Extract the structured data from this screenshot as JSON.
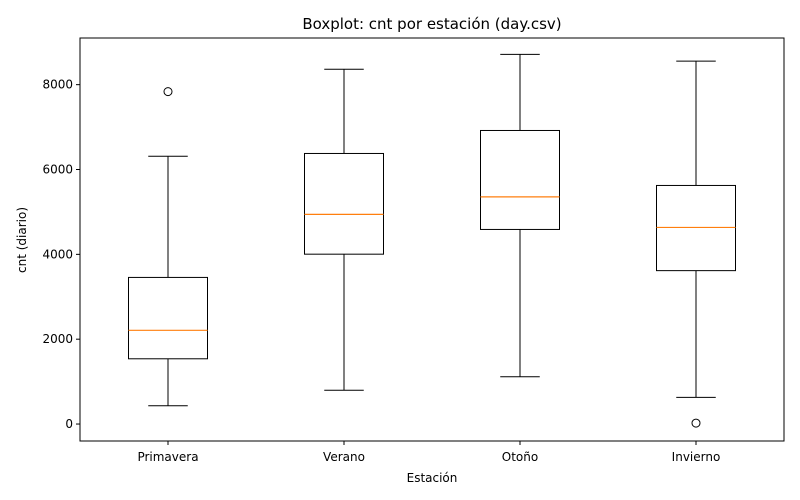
{
  "chart_data": {
    "type": "boxplot",
    "title": "Boxplot: cnt por estación (day.csv)",
    "xlabel": "Estación",
    "ylabel": "cnt (diario)",
    "ylim": [
      -400,
      9100
    ],
    "yticks": [
      0,
      2000,
      4000,
      6000,
      8000
    ],
    "grid": false,
    "colors": {
      "box": "#000000",
      "median": "#ff7f0e",
      "flier": "#000000"
    },
    "categories": [
      "Primavera",
      "Verano",
      "Otoño",
      "Invierno"
    ],
    "boxes": [
      {
        "category": "Primavera",
        "whisker_low": 431,
        "q1": 1538,
        "median": 2209,
        "q3": 3456,
        "whisker_high": 6312,
        "fliers": [
          7836
        ]
      },
      {
        "category": "Verano",
        "whisker_low": 795,
        "q1": 4004,
        "median": 4942,
        "q3": 6378,
        "whisker_high": 8362,
        "fliers": []
      },
      {
        "category": "Otoño",
        "whisker_low": 1115,
        "q1": 4587,
        "median": 5354,
        "q3": 6920,
        "whisker_high": 8714,
        "fliers": []
      },
      {
        "category": "Invierno",
        "whisker_low": 627,
        "q1": 3616,
        "median": 4634,
        "q3": 5624,
        "whisker_high": 8555,
        "fliers": [
          22
        ]
      }
    ]
  }
}
